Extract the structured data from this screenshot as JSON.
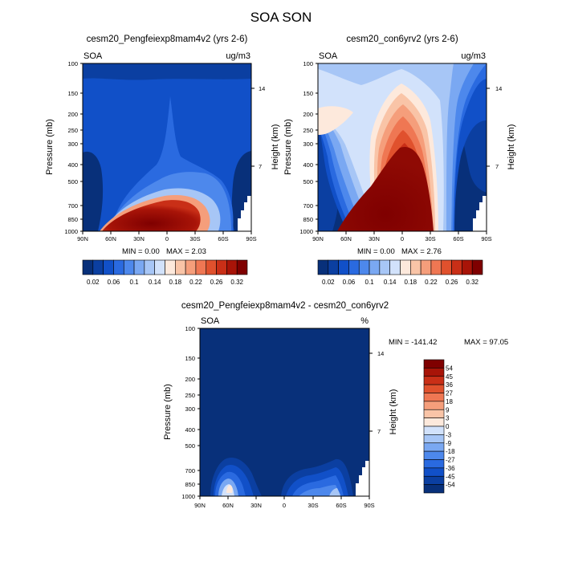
{
  "figure": {
    "title": "SOA SON"
  },
  "palette": [
    "#08307a",
    "#0b3fa1",
    "#1150c8",
    "#2a6ae0",
    "#4d88ec",
    "#7aa8f2",
    "#a7c6f6",
    "#d2e2fb",
    "#fde9dc",
    "#f9c4a7",
    "#f59e7b",
    "#ef7753",
    "#e0512d",
    "#c92f17",
    "#a81408",
    "#7f0000"
  ],
  "chart_data": [
    {
      "id": "panel-a",
      "type": "heatmap",
      "title": "cesm20_Pengfeiexp8mam4v2 (yrs 2-6)",
      "variable": "SOA",
      "units": "ug/m3",
      "ylabel": "Pressure (mb)",
      "ylabel_right": "Height (km)",
      "x_ticks": [
        "90N",
        "60N",
        "30N",
        "0",
        "30S",
        "60S",
        "90S"
      ],
      "y_ticks": [
        100,
        150,
        200,
        250,
        300,
        400,
        500,
        700,
        850,
        1000
      ],
      "y_ticks_right": [
        14,
        7
      ],
      "ylim": [
        1000,
        100
      ],
      "min_label": "MIN =  0.00",
      "max_label": "MAX =  2.03",
      "colorbar": {
        "labels": [
          "0.02",
          "0.06",
          "0.1",
          "0.14",
          "0.18",
          "0.22",
          "0.26",
          "0.32"
        ]
      }
    },
    {
      "id": "panel-b",
      "type": "heatmap",
      "title": "cesm20_con6yrv2 (yrs 2-6)",
      "variable": "SOA",
      "units": "ug/m3",
      "ylabel": "Pressure (mb)",
      "ylabel_right": "Height (km)",
      "x_ticks": [
        "90N",
        "60N",
        "30N",
        "0",
        "30S",
        "60S",
        "90S"
      ],
      "y_ticks": [
        100,
        150,
        200,
        250,
        300,
        400,
        500,
        700,
        850,
        1000
      ],
      "y_ticks_right": [
        14,
        7
      ],
      "ylim": [
        1000,
        100
      ],
      "min_label": "MIN =  0.00",
      "max_label": "MAX =  2.76",
      "colorbar": {
        "labels": [
          "0.02",
          "0.06",
          "0.1",
          "0.14",
          "0.18",
          "0.22",
          "0.26",
          "0.32"
        ]
      }
    },
    {
      "id": "panel-c",
      "type": "heatmap",
      "title": "cesm20_Pengfeiexp8mam4v2 - cesm20_con6yrv2",
      "variable": "SOA",
      "units": "%",
      "ylabel": "Pressure (mb)",
      "ylabel_right": "Height (km)",
      "x_ticks": [
        "90N",
        "60N",
        "30N",
        "0",
        "30S",
        "60S",
        "90S"
      ],
      "y_ticks": [
        100,
        150,
        200,
        250,
        300,
        400,
        500,
        700,
        850,
        1000
      ],
      "y_ticks_right": [
        14,
        7
      ],
      "ylim": [
        1000,
        100
      ],
      "min_label": "MIN = -141.42",
      "max_label": "MAX =  97.05",
      "colorbar": {
        "labels": [
          "54",
          "45",
          "36",
          "27",
          "18",
          "9",
          "3",
          "0",
          "-3",
          "-9",
          "-18",
          "-27",
          "-36",
          "-45",
          "-54"
        ]
      }
    }
  ]
}
